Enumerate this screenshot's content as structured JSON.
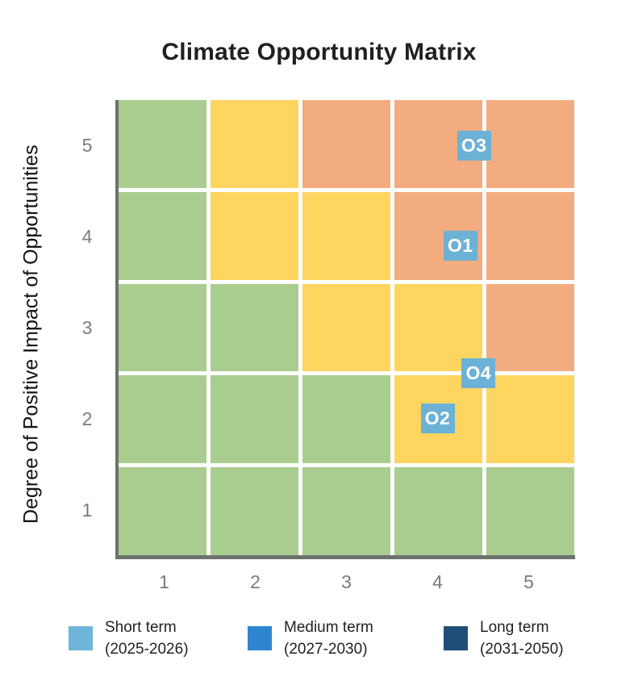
{
  "title": "Climate Opportunity Matrix",
  "chart_data": {
    "type": "heatmap",
    "title": "Climate Opportunity Matrix",
    "xlabel": "",
    "ylabel": "Degree of Positive Impact of Opportunities",
    "x_ticks": [
      "1",
      "2",
      "3",
      "4",
      "5"
    ],
    "y_ticks_top_to_bottom": [
      "5",
      "4",
      "3",
      "2",
      "1"
    ],
    "xlim": [
      0.5,
      5.5
    ],
    "ylim": [
      0.5,
      5.5
    ],
    "grid": "white gridlines between cells",
    "legend_position": "bottom",
    "cell_colors_rows_top_to_bottom": [
      [
        "green",
        "yellow",
        "orange",
        "orange",
        "orange"
      ],
      [
        "green",
        "yellow",
        "yellow",
        "orange",
        "orange"
      ],
      [
        "green",
        "green",
        "yellow",
        "yellow",
        "orange"
      ],
      [
        "green",
        "green",
        "green",
        "yellow",
        "yellow"
      ],
      [
        "green",
        "green",
        "green",
        "green",
        "green"
      ]
    ],
    "palette": {
      "green": "#a9cd8e",
      "yellow": "#fdd55f",
      "orange": "#f2ac80"
    },
    "points": [
      {
        "label": "O3",
        "x": 4.4,
        "y": 5.0,
        "term": "short"
      },
      {
        "label": "O1",
        "x": 4.25,
        "y": 3.9,
        "term": "short"
      },
      {
        "label": "O4",
        "x": 4.45,
        "y": 2.5,
        "term": "short"
      },
      {
        "label": "O2",
        "x": 4.0,
        "y": 2.0,
        "term": "short"
      }
    ],
    "marker_color": "#6cb1d6",
    "legend": [
      {
        "label": "Short term",
        "range": "(2025-2026)",
        "color": "#6fb5d9"
      },
      {
        "label": "Medium term",
        "range": "(2027-2030)",
        "color": "#2e86cf"
      },
      {
        "label": "Long term",
        "range": "(2031-2050)",
        "color": "#1f4e79"
      }
    ]
  }
}
